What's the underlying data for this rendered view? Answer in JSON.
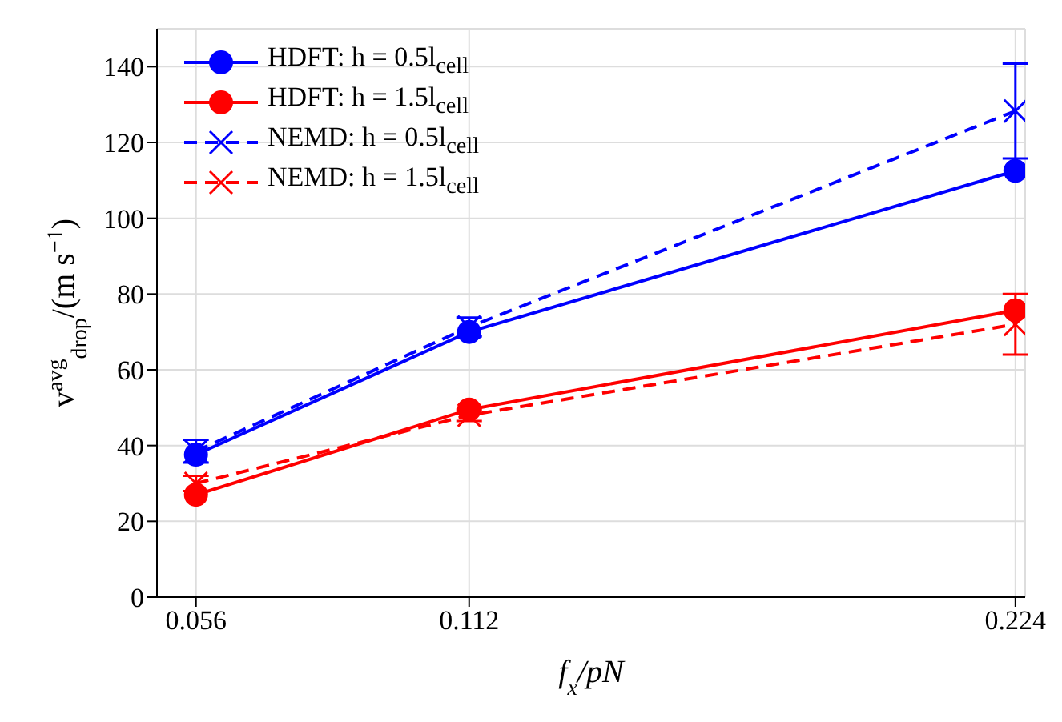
{
  "chart_data": {
    "type": "line",
    "xlabel": "f$_{x}$/pN",
    "ylabel": "v$^{avg}$$_{drop}$/(m s$^{−1}$)",
    "x": [
      0.056,
      0.112,
      0.224
    ],
    "series": [
      {
        "name": "HDFT: h = 0.5l$_{cell}$",
        "color": "#0000ff",
        "values": [
          37.6,
          70,
          112.5
        ],
        "marker": "circle",
        "line_style": "solid"
      },
      {
        "name": "HDFT: h = 1.5l$_{cell}$",
        "color": "#ff0000",
        "values": [
          27,
          49.5,
          75.7
        ],
        "marker": "circle",
        "line_style": "solid"
      },
      {
        "name": "NEMD: h = 0.5l$_{cell}$",
        "color": "#0000ff",
        "values": [
          38.5,
          71.3,
          128.3
        ],
        "errors": [
          3,
          2.5,
          12.5
        ],
        "marker": "cross",
        "line_style": "dashed"
      },
      {
        "name": "NEMD: h = 1.5l$_{cell}$",
        "color": "#ff0000",
        "values": [
          30,
          48,
          72
        ],
        "errors": [
          2,
          1.5,
          8
        ],
        "marker": "cross",
        "line_style": "dashed"
      }
    ],
    "xlim": [
      0.048,
      0.226
    ],
    "xticks": [
      0.056,
      0.112,
      0.224
    ],
    "ylim": [
      0,
      150
    ],
    "yticks": [
      0,
      20,
      40,
      60,
      80,
      100,
      120,
      140
    ],
    "grid": true,
    "legend": "top left"
  }
}
